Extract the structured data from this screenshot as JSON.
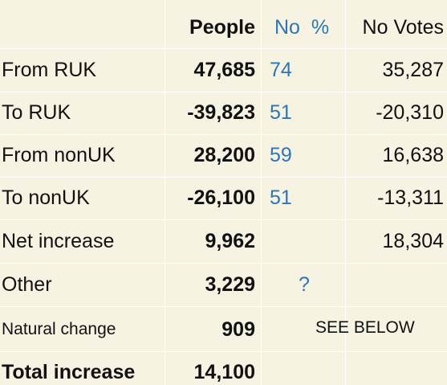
{
  "table": {
    "header": {
      "people": "People",
      "no_pct": "No  %",
      "no_votes": "No Votes"
    },
    "rows": [
      {
        "label": "From RUK",
        "people": "47,685",
        "no_pct": "74",
        "no_votes": "35,287"
      },
      {
        "label": "To RUK",
        "people": "-39,823",
        "no_pct": "51",
        "no_votes": "-20,310"
      },
      {
        "label": "From nonUK",
        "people": "28,200",
        "no_pct": "59",
        "no_votes": "16,638"
      },
      {
        "label": "To nonUK",
        "people": "-26,100",
        "no_pct": "51",
        "no_votes": "-13,311"
      },
      {
        "label": "Net increase",
        "people": "9,962",
        "no_votes": "18,304"
      },
      {
        "label": "Other",
        "people": "3,229",
        "no_pct": "?"
      },
      {
        "label": "Natural change",
        "people": "909",
        "note": "SEE BELOW"
      },
      {
        "label": "Total increase",
        "people": "14,100"
      }
    ]
  }
}
